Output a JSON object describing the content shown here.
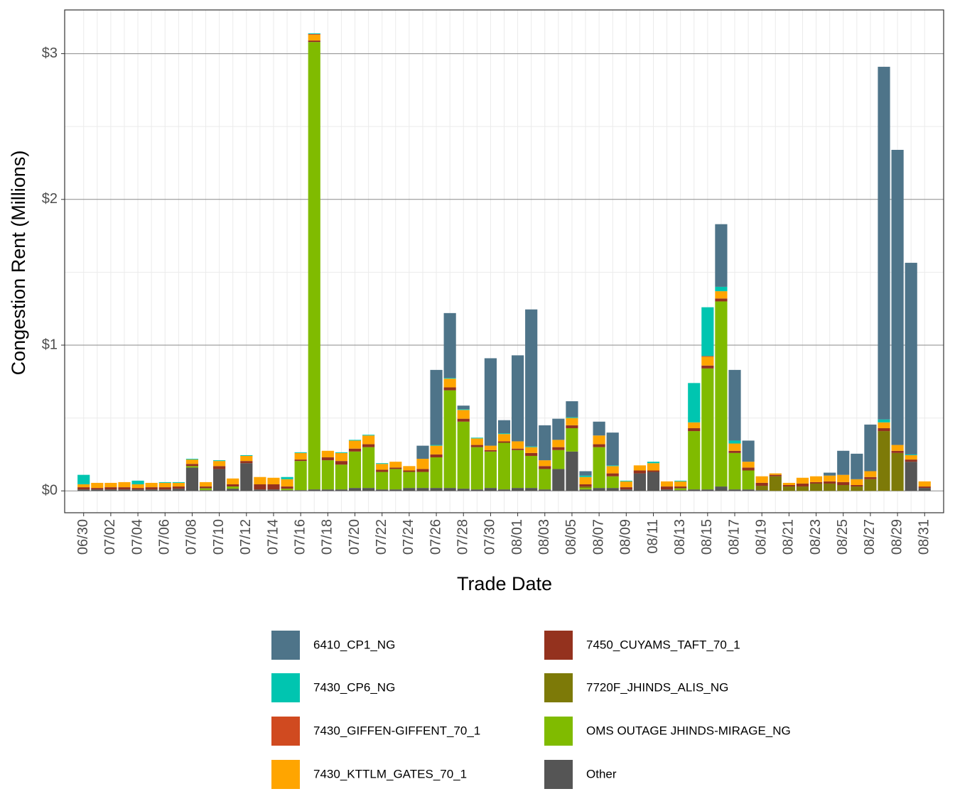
{
  "chart_data": {
    "type": "stacked_bar",
    "x_label": "Trade Date",
    "y_label": "Congestion Rent (Millions)",
    "categories": [
      "06/30",
      null,
      "07/02",
      null,
      "07/04",
      null,
      "07/06",
      null,
      "07/08",
      null,
      "07/10",
      null,
      "07/12",
      null,
      "07/14",
      null,
      "07/16",
      null,
      "07/18",
      null,
      "07/20",
      null,
      "07/22",
      null,
      "07/24",
      null,
      "07/26",
      null,
      "07/28",
      null,
      "07/30",
      null,
      "08/01",
      null,
      "08/03",
      null,
      "08/05",
      null,
      "08/07",
      null,
      "08/09",
      null,
      "08/11",
      null,
      "08/13",
      null,
      "08/15",
      null,
      "08/17",
      null,
      "08/19",
      null,
      "08/21",
      null,
      "08/23",
      null,
      "08/25",
      null,
      "08/27",
      null,
      "08/29",
      null,
      "08/31"
    ],
    "series": [
      {
        "name": "6410_CP1_NG",
        "color": "#4e7489",
        "values": [
          0,
          0,
          0,
          0,
          0,
          0,
          0,
          0,
          0,
          0,
          0,
          0,
          0,
          0,
          0,
          0,
          0,
          0,
          0,
          0,
          0,
          0,
          0,
          0,
          0,
          0.09,
          0.515,
          0.445,
          0.025,
          0,
          0.6,
          0.09,
          0.59,
          0.94,
          0.24,
          0.145,
          0.11,
          0.03,
          0.095,
          0.225,
          0,
          0,
          0,
          0,
          0,
          0,
          0,
          0.43,
          0.485,
          0.145,
          0,
          0,
          0,
          0,
          0,
          0.02,
          0.165,
          0.175,
          0.32,
          2.42,
          2.025,
          1.315,
          0
        ]
      },
      {
        "name": "7430_CP6_NG",
        "color": "#00c5b0",
        "values": [
          0.065,
          0,
          0,
          0,
          0.025,
          0,
          0.005,
          0.005,
          0.005,
          0,
          0.005,
          0,
          0.005,
          0,
          0,
          0.015,
          0.005,
          0.005,
          0,
          0.005,
          0.005,
          0.005,
          0.005,
          0,
          0,
          0,
          0.005,
          0.005,
          0.005,
          0.005,
          0,
          0.005,
          0,
          0.005,
          0,
          0,
          0.005,
          0.01,
          0,
          0.005,
          0.005,
          0,
          0.01,
          0,
          0.005,
          0.27,
          0.335,
          0.03,
          0.02,
          0,
          0,
          0,
          0,
          0,
          0,
          0,
          0,
          0,
          0,
          0.02,
          0,
          0.005,
          0
        ]
      },
      {
        "name": "7430_GIFFEN-GIFFENT_70_1",
        "color": "#d04a20",
        "values": [
          0,
          0,
          0,
          0,
          0,
          0,
          0,
          0,
          0,
          0,
          0,
          0,
          0,
          0,
          0,
          0,
          0,
          0.005,
          0,
          0,
          0,
          0,
          0,
          0,
          0,
          0,
          0,
          0,
          0,
          0,
          0,
          0,
          0,
          0,
          0,
          0,
          0,
          0,
          0,
          0,
          0,
          0,
          0,
          0,
          0,
          0,
          0.005,
          0,
          0,
          0,
          0,
          0,
          0,
          0,
          0,
          0,
          0,
          0,
          0,
          0,
          0,
          0,
          0
        ]
      },
      {
        "name": "7430_KTTLM_GATES_70_1",
        "color": "#ffa500",
        "values": [
          0.02,
          0.035,
          0.03,
          0.035,
          0.025,
          0.03,
          0.03,
          0.025,
          0.03,
          0.03,
          0.035,
          0.04,
          0.035,
          0.05,
          0.045,
          0.05,
          0.045,
          0.04,
          0.045,
          0.055,
          0.055,
          0.06,
          0.04,
          0.04,
          0.03,
          0.07,
          0.06,
          0.06,
          0.06,
          0.045,
          0.03,
          0.05,
          0.05,
          0.04,
          0.04,
          0.05,
          0.05,
          0.05,
          0.06,
          0.05,
          0.04,
          0.035,
          0.05,
          0.035,
          0.035,
          0.04,
          0.06,
          0.05,
          0.05,
          0.04,
          0.045,
          0.01,
          0.015,
          0.04,
          0.04,
          0.04,
          0.05,
          0.04,
          0.04,
          0.04,
          0.04,
          0.03,
          0.035
        ]
      },
      {
        "name": "7450_CUYAMS_TAFT_70_1",
        "color": "#94321e",
        "values": [
          0.015,
          0.01,
          0.015,
          0.015,
          0.01,
          0.015,
          0.015,
          0.015,
          0.015,
          0.01,
          0.02,
          0.015,
          0.015,
          0.035,
          0.035,
          0.015,
          0.01,
          0.01,
          0.02,
          0.025,
          0.02,
          0.02,
          0.015,
          0.01,
          0.01,
          0.02,
          0.02,
          0.02,
          0.02,
          0.015,
          0.01,
          0.01,
          0.01,
          0.02,
          0.02,
          0.02,
          0.02,
          0.015,
          0.02,
          0.02,
          0.015,
          0.02,
          0.01,
          0.02,
          0.01,
          0.02,
          0.02,
          0.02,
          0.015,
          0.02,
          0.02,
          0.01,
          0.01,
          0.02,
          0.01,
          0.015,
          0.02,
          0.01,
          0.015,
          0.02,
          0.015,
          0.015,
          0.01
        ]
      },
      {
        "name": "7720F_JHINDS_ALIS_NG",
        "color": "#7d7a08",
        "values": [
          0,
          0,
          0,
          0,
          0,
          0,
          0,
          0,
          0,
          0.005,
          0,
          0,
          0,
          0,
          0,
          0,
          0,
          0,
          0,
          0,
          0,
          0,
          0,
          0,
          0,
          0,
          0,
          0,
          0,
          0,
          0,
          0,
          0,
          0,
          0,
          0,
          0,
          0.01,
          0,
          0,
          0,
          0,
          0,
          0,
          0.005,
          0,
          0,
          0,
          0,
          0,
          0.03,
          0.1,
          0.03,
          0.03,
          0.05,
          0.05,
          0.04,
          0.03,
          0.08,
          0.41,
          0.26,
          0,
          0
        ]
      },
      {
        "name": "OMS OUTAGE JHINDS-MIRAGE_NG",
        "color": "#80bb00",
        "values": [
          0,
          0,
          0,
          0,
          0,
          0,
          0,
          0,
          0.01,
          0.01,
          0,
          0.015,
          0,
          0,
          0,
          0.01,
          0.2,
          3.07,
          0.2,
          0.17,
          0.25,
          0.28,
          0.12,
          0.14,
          0.11,
          0.11,
          0.21,
          0.67,
          0.46,
          0.29,
          0.25,
          0.32,
          0.26,
          0.22,
          0.14,
          0.13,
          0.16,
          0.01,
          0.28,
          0.08,
          0,
          0,
          0,
          0,
          0.01,
          0.4,
          0.83,
          1.27,
          0.25,
          0.13,
          0,
          0,
          0,
          0,
          0,
          0,
          0,
          0,
          0,
          0,
          0,
          0,
          0
        ]
      },
      {
        "name": "Other",
        "color": "#555555",
        "values": [
          0.01,
          0.01,
          0.01,
          0.01,
          0.01,
          0.01,
          0.01,
          0.015,
          0.16,
          0.005,
          0.15,
          0.015,
          0.19,
          0.01,
          0.01,
          0.005,
          0.005,
          0.01,
          0.01,
          0.01,
          0.02,
          0.02,
          0.01,
          0.01,
          0.02,
          0.02,
          0.02,
          0.02,
          0.015,
          0.01,
          0.02,
          0.01,
          0.02,
          0.02,
          0.01,
          0.15,
          0.27,
          0.01,
          0.02,
          0.02,
          0.01,
          0.12,
          0.13,
          0.01,
          0.005,
          0.01,
          0.01,
          0.03,
          0.01,
          0.01,
          0.005,
          0,
          0,
          0,
          0,
          0,
          0,
          0,
          0,
          0,
          0,
          0.2,
          0.02
        ]
      }
    ],
    "ylim": [
      -0.15,
      3.3
    ],
    "yticks": [
      {
        "value": 0,
        "label": "$0"
      },
      {
        "value": 1,
        "label": "$1"
      },
      {
        "value": 2,
        "label": "$2"
      },
      {
        "value": 3,
        "label": "$3"
      }
    ],
    "y_minor_grid": [
      0.5,
      1.5,
      2.5
    ],
    "grid": true,
    "legend_position": "bottom"
  }
}
